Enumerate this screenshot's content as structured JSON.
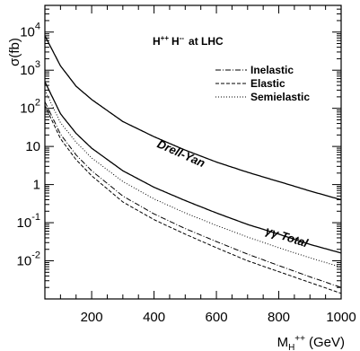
{
  "chart_data": {
    "type": "line",
    "title": "H<sup>++</sup> H<sup>--</sup> at LHC",
    "title_parts": {
      "a": "H",
      "a_sup": "++",
      "b": "H",
      "b_sup": "--",
      "rest": "at LHC"
    },
    "ylabel": "σ(fb)",
    "xlabel_parts": {
      "main": "M",
      "sub": "H",
      "sup": "++",
      "unit": "(GeV)"
    },
    "xlim": [
      50,
      1000
    ],
    "ylim_log10": [
      -3,
      4.7
    ],
    "y_scale": "log",
    "x_ticks": [
      {
        "value": 200,
        "label": "200"
      },
      {
        "value": 400,
        "label": "400"
      },
      {
        "value": 600,
        "label": "600"
      },
      {
        "value": 800,
        "label": "800"
      },
      {
        "value": 1000,
        "label": "1000"
      }
    ],
    "y_ticks": [
      {
        "exp": 4,
        "base": "10",
        "sup": "4"
      },
      {
        "exp": 3,
        "base": "10",
        "sup": "3"
      },
      {
        "exp": 2,
        "base": "10",
        "sup": "2"
      },
      {
        "exp": 1,
        "base": "10",
        "sup": ""
      },
      {
        "exp": 0,
        "base": "1",
        "sup": ""
      },
      {
        "exp": -1,
        "base": "10",
        "sup": "-1"
      },
      {
        "exp": -2,
        "base": "10",
        "sup": "-2"
      }
    ],
    "legend_position": "top-right",
    "legend": [
      {
        "label": "Inelastic",
        "dash": "6,2,1,2"
      },
      {
        "label": "Elastic",
        "dash": "4,2"
      },
      {
        "label": "Semielastic",
        "dash": "1,2"
      }
    ],
    "annotations": [
      {
        "text": "Drell-Yan",
        "series": "dy"
      },
      {
        "text": "γγ Total",
        "series": "gg"
      }
    ],
    "series": [
      {
        "id": "dy",
        "style": "solid",
        "x": [
          50,
          100,
          150,
          200,
          300,
          400,
          500,
          600,
          700,
          800,
          900,
          1000
        ],
        "y": [
          8000,
          1300,
          380,
          170,
          45,
          18,
          8,
          3.9,
          2.1,
          1.2,
          0.68,
          0.4
        ]
      },
      {
        "id": "gg",
        "style": "solid",
        "x": [
          50,
          100,
          150,
          200,
          300,
          400,
          500,
          600,
          700,
          800,
          900,
          1000
        ],
        "y": [
          500,
          72,
          22,
          9,
          2.3,
          0.85,
          0.38,
          0.18,
          0.09,
          0.05,
          0.027,
          0.016
        ]
      },
      {
        "id": "semi",
        "style": "dotted",
        "dash": "1,2",
        "x": [
          50,
          100,
          150,
          200,
          300,
          400,
          500,
          600,
          700,
          800,
          900,
          1000
        ],
        "y": [
          300,
          42,
          13,
          5,
          1.2,
          0.42,
          0.18,
          0.085,
          0.042,
          0.022,
          0.012,
          0.0068
        ]
      },
      {
        "id": "inel",
        "style": "dashdot",
        "dash": "6,2,1,2",
        "x": [
          50,
          100,
          150,
          200,
          300,
          400,
          500,
          600,
          700,
          800,
          900,
          1000
        ],
        "y": [
          150,
          21,
          6,
          2.3,
          0.5,
          0.17,
          0.07,
          0.032,
          0.015,
          0.0075,
          0.0038,
          0.002
        ]
      },
      {
        "id": "el",
        "style": "dashed",
        "dash": "4,2",
        "x": [
          50,
          100,
          150,
          200,
          300,
          400,
          500,
          600,
          700,
          800,
          900,
          1000
        ],
        "y": [
          120,
          16,
          4.5,
          1.7,
          0.35,
          0.12,
          0.05,
          0.022,
          0.01,
          0.0052,
          0.0027,
          0.0014
        ]
      }
    ]
  }
}
